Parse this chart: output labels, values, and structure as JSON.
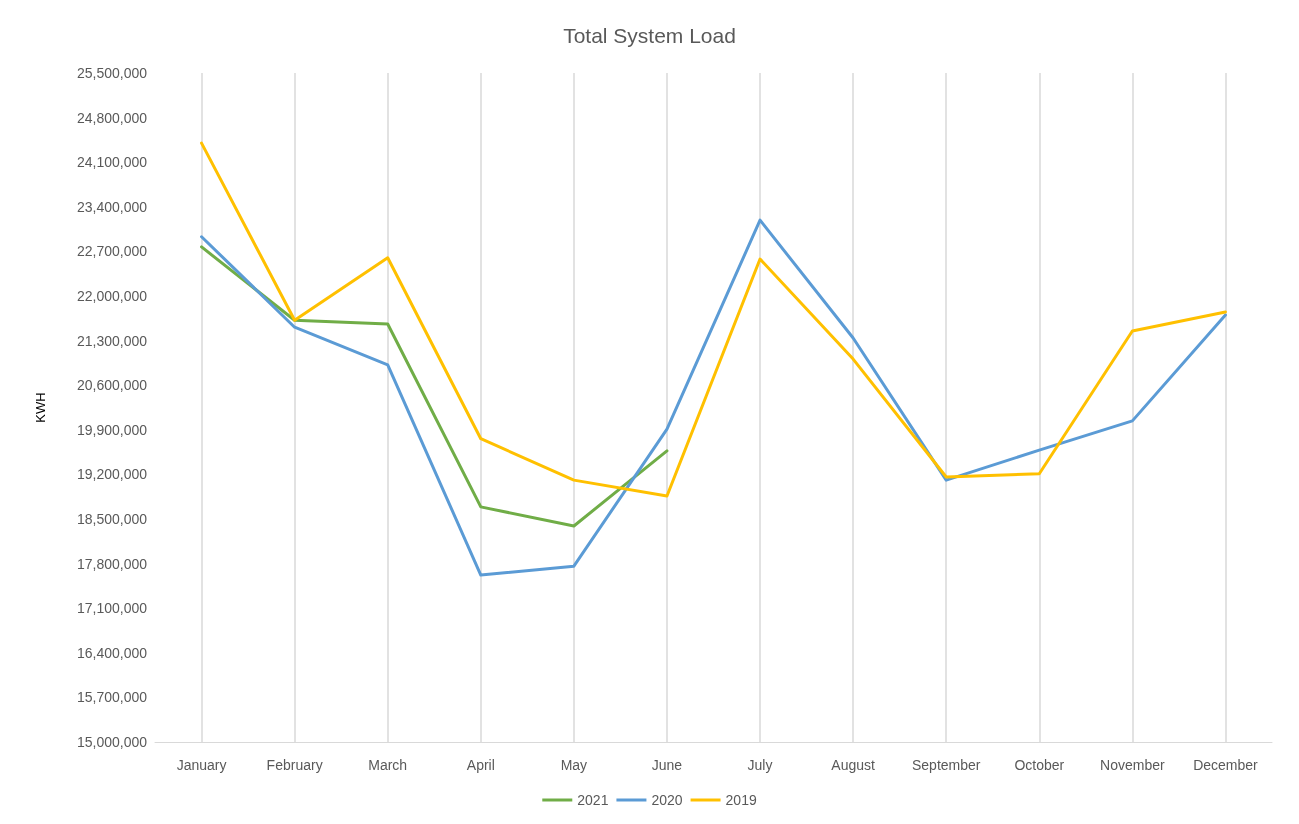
{
  "chart_data": {
    "type": "line",
    "title": "Total System Load",
    "ylabel": "KWH",
    "categories": [
      "January",
      "February",
      "March",
      "April",
      "May",
      "June",
      "July",
      "August",
      "September",
      "October",
      "November",
      "December"
    ],
    "series": [
      {
        "name": "2021",
        "color": "#70ad47",
        "values": [
          22770000,
          21620000,
          21560000,
          18690000,
          18390000,
          19570000,
          null,
          null,
          null,
          null,
          null,
          null
        ]
      },
      {
        "name": "2020",
        "color": "#5b9bd5",
        "values": [
          22930000,
          21510000,
          20920000,
          17620000,
          17760000,
          19910000,
          23190000,
          21340000,
          19110000,
          19580000,
          20040000,
          21700000
        ]
      },
      {
        "name": "2019",
        "color": "#ffc000",
        "values": [
          24400000,
          21620000,
          22600000,
          19760000,
          19110000,
          18860000,
          22580000,
          21010000,
          19160000,
          19210000,
          21450000,
          21750000
        ]
      }
    ],
    "ylim": [
      15000000,
      25500000
    ],
    "yticks": [
      {
        "value": 15000000,
        "label": "15,000,000"
      },
      {
        "value": 15700000,
        "label": "15,700,000"
      },
      {
        "value": 16400000,
        "label": "16,400,000"
      },
      {
        "value": 17100000,
        "label": "17,100,000"
      },
      {
        "value": 17800000,
        "label": "17,800,000"
      },
      {
        "value": 18500000,
        "label": "18,500,000"
      },
      {
        "value": 19200000,
        "label": "19,200,000"
      },
      {
        "value": 19900000,
        "label": "19,900,000"
      },
      {
        "value": 20600000,
        "label": "20,600,000"
      },
      {
        "value": 21300000,
        "label": "21,300,000"
      },
      {
        "value": 22000000,
        "label": "22,000,000"
      },
      {
        "value": 22700000,
        "label": "22,700,000"
      },
      {
        "value": 23400000,
        "label": "23,400,000"
      },
      {
        "value": 24100000,
        "label": "24,100,000"
      },
      {
        "value": 24800000,
        "label": "24,800,000"
      },
      {
        "value": 25500000,
        "label": "25,500,000"
      }
    ],
    "grid": "x",
    "legend": "bottom",
    "marker": "none",
    "line_style": "solid"
  }
}
